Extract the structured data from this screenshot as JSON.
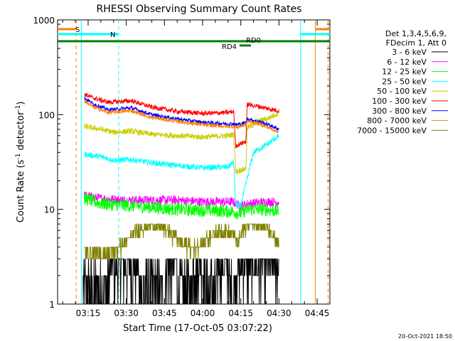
{
  "chart_data": {
    "type": "line",
    "title": "RHESSI Observing Summary Count Rates",
    "xlabel": "Start Time (17-Oct-05 03:07:22)",
    "ylabel_main": "Count Rate (s",
    "ylabel_sup1": "-1",
    "ylabel_mid": " detector",
    "ylabel_sup2": "-1",
    "ylabel_end": ")",
    "y_scale": "log",
    "ylim": [
      1,
      1000
    ],
    "x_range_minutes": [
      183,
      290
    ],
    "x_ticks": [
      {
        "minute": 195,
        "label": "03:15"
      },
      {
        "minute": 210,
        "label": "03:30"
      },
      {
        "minute": 225,
        "label": "03:45"
      },
      {
        "minute": 240,
        "label": "04:00"
      },
      {
        "minute": 255,
        "label": "04:15"
      },
      {
        "minute": 270,
        "label": "04:30"
      },
      {
        "minute": 285,
        "label": "04:45"
      }
    ],
    "y_ticks": [
      {
        "value": 1,
        "label": "1"
      },
      {
        "value": 10,
        "label": "10"
      },
      {
        "value": 100,
        "label": "100"
      },
      {
        "value": 1000,
        "label": "1000"
      }
    ],
    "legend_header": [
      "Det 1,3,4,5,6,9,",
      "FDecim 1, Att 0"
    ],
    "legend_position": "right",
    "series": [
      {
        "name": "3 - 6 keV",
        "color": "#000000",
        "x": [
          193.0,
          198.0,
          204.5,
          214.0,
          219.5,
          228.0,
          233.0,
          238.0,
          244.0,
          248.5,
          252.0,
          254.5,
          260.0,
          267.0,
          270.0
        ],
        "y": [
          2.0,
          1.2,
          2.2,
          2.2,
          1.2,
          2.5,
          1.4,
          2.6,
          1.5,
          3.0,
          1.5,
          3.0,
          2.0,
          3.5,
          3.0
        ]
      },
      {
        "name": "6 - 12 keV",
        "color": "#ff00ff",
        "x": [
          193.5,
          200.0,
          210.0,
          220.0,
          230.0,
          240.0,
          252.0,
          254.5,
          258.0,
          265.0,
          270.0
        ],
        "y": [
          14.0,
          13.0,
          12.5,
          12.5,
          12.5,
          12.0,
          12.0,
          10.8,
          11.5,
          12.0,
          12.0
        ]
      },
      {
        "name": "12 - 25 keV",
        "color": "#00ff00",
        "x": [
          193.5,
          200.0,
          210.0,
          220.0,
          230.0,
          240.0,
          252.0,
          254.5,
          258.0,
          265.0,
          270.0
        ],
        "y": [
          13.0,
          11.5,
          11.0,
          10.5,
          10.0,
          9.8,
          9.5,
          9.0,
          10.0,
          10.0,
          9.5
        ]
      },
      {
        "name": "25 - 50 keV",
        "color": "#00ffff",
        "x": [
          193.5,
          200.0,
          205.0,
          212.0,
          220.0,
          230.0,
          240.0,
          250.0,
          252.2,
          253.0,
          255.0,
          260.0,
          265.0,
          270.0
        ],
        "y": [
          38.0,
          36.0,
          33.0,
          33.5,
          31.0,
          29.0,
          27.5,
          28.0,
          32.0,
          11.0,
          11.0,
          40.0,
          48.0,
          60.0
        ]
      },
      {
        "name": "50 - 100 keV",
        "color": "#cccc00",
        "x": [
          193.5,
          200.0,
          205.0,
          212.0,
          220.0,
          230.0,
          240.0,
          250.0,
          252.2,
          253.0,
          257.0,
          257.5,
          262.0,
          266.0,
          270.0
        ],
        "y": [
          75.0,
          70.0,
          65.0,
          67.0,
          62.0,
          60.0,
          58.0,
          60.0,
          62.0,
          25.0,
          27.0,
          72.0,
          85.0,
          92.0,
          105.0
        ]
      },
      {
        "name": "100 - 300 keV",
        "color": "#ff0000",
        "x": [
          193.5,
          197.0,
          203.0,
          212.0,
          220.0,
          230.0,
          240.0,
          250.0,
          252.2,
          253.0,
          257.0,
          257.5,
          262.0,
          266.0,
          270.0
        ],
        "y": [
          165.0,
          150.0,
          135.0,
          140.0,
          120.0,
          108.0,
          103.0,
          105.0,
          108.0,
          47.0,
          52.0,
          128.0,
          122.0,
          115.0,
          110.0
        ]
      },
      {
        "name": "300 - 800 keV",
        "color": "#0000ff",
        "x": [
          193.5,
          197.0,
          203.0,
          212.0,
          220.0,
          230.0,
          240.0,
          250.0,
          252.2,
          253.0,
          257.0,
          257.5,
          262.0,
          266.0,
          270.0
        ],
        "y": [
          150.0,
          130.0,
          112.0,
          118.0,
          100.0,
          90.0,
          83.0,
          80.0,
          80.0,
          78.0,
          82.0,
          90.0,
          85.0,
          78.0,
          70.0
        ]
      },
      {
        "name": "800 - 7000 keV",
        "color": "#ff8000",
        "x": [
          193.5,
          197.0,
          203.0,
          212.0,
          220.0,
          230.0,
          240.0,
          250.0,
          252.2,
          253.0,
          257.0,
          257.5,
          262.0,
          266.0,
          270.0
        ],
        "y": [
          140.0,
          120.0,
          105.0,
          110.0,
          93.0,
          85.0,
          78.0,
          75.0,
          75.0,
          73.0,
          78.0,
          85.0,
          80.0,
          73.0,
          65.0
        ]
      },
      {
        "name": "7000 - 15000 keV",
        "color": "#808000",
        "x": [
          193.5,
          197.0,
          200.0,
          206.0,
          210.0,
          213.0,
          216.0,
          220.0,
          224.0,
          230.0,
          236.0,
          240.0,
          244.0,
          248.0,
          252.0,
          254.0,
          256.0,
          259.0,
          262.0,
          265.0,
          268.0,
          270.0
        ],
        "y": [
          3.5,
          3.5,
          3.2,
          3.8,
          4.5,
          5.5,
          6.5,
          7.0,
          6.5,
          5.0,
          3.8,
          4.5,
          5.5,
          6.0,
          5.5,
          4.5,
          6.0,
          7.5,
          7.0,
          6.5,
          5.0,
          4.0
        ]
      }
    ],
    "annotations": {
      "saa_label": "S",
      "night_label": "N",
      "rd_labels": [
        "RD0",
        "RD4"
      ],
      "timestamp": "20-Oct-2021 18:50"
    },
    "vertical_markers": {
      "saa_start": 190.3,
      "saa_end": 289.3,
      "night_end": 207.0,
      "night_start": 278.5,
      "solid_cyan": [
        192.3,
        278.5
      ],
      "solid_orange": [
        284.3
      ]
    },
    "horizontal_bars": {
      "saa": [
        [
          183.0,
          190.3
        ],
        [
          284.3,
          290.0
        ]
      ],
      "night": [
        [
          183.0,
          207.0
        ],
        [
          278.5,
          290.0
        ]
      ],
      "rd0": [
        [
          183.0,
          290.0
        ]
      ],
      "rd4": [
        [
          254.5,
          259.0
        ]
      ]
    },
    "bar_colors": {
      "saa": "#ff8000",
      "night": "#00ffff",
      "rd": "#008000"
    }
  }
}
